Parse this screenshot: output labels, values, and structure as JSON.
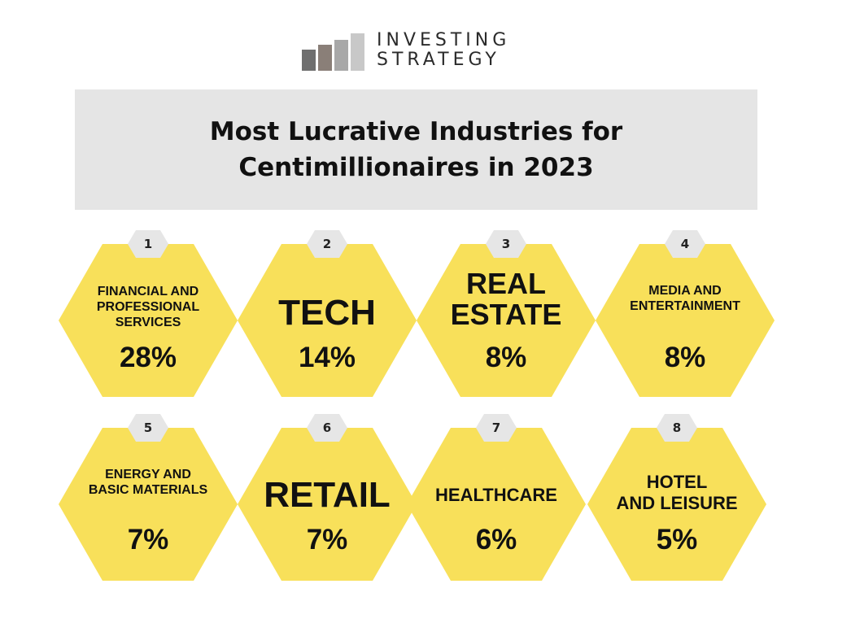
{
  "logo": {
    "line1": "INVESTING",
    "line2": "STRATEGY"
  },
  "title": "Most Lucrative Industries for\nCentimillionaires in 2023",
  "colors": {
    "hex_fill": "#f8e05a",
    "badge_fill": "#e6e6e6",
    "banner": "#e5e5e5"
  },
  "industries": [
    {
      "rank": "1",
      "name": "FINANCIAL AND\nPROFESSIONAL\nSERVICES",
      "share": "28%"
    },
    {
      "rank": "2",
      "name": "TECH",
      "share": "14%"
    },
    {
      "rank": "3",
      "name": "REAL\nESTATE",
      "share": "8%"
    },
    {
      "rank": "4",
      "name": "MEDIA AND\nENTERTAINMENT",
      "share": "8%"
    },
    {
      "rank": "5",
      "name": "ENERGY AND\nBASIC MATERIALS",
      "share": "7%"
    },
    {
      "rank": "6",
      "name": "RETAIL",
      "share": "7%"
    },
    {
      "rank": "7",
      "name": "HEALTHCARE",
      "share": "6%"
    },
    {
      "rank": "8",
      "name": "HOTEL\nAND LEISURE",
      "share": "5%"
    }
  ]
}
